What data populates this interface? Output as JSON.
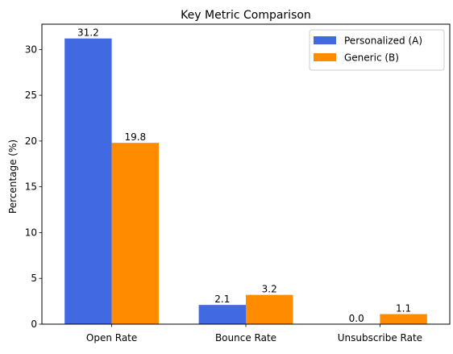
{
  "chart_data": {
    "type": "bar",
    "title": "Key Metric Comparison",
    "xlabel": "",
    "ylabel": "Percentage (%)",
    "categories": [
      "Open Rate",
      "Bounce Rate",
      "Unsubscribe Rate"
    ],
    "ylim": [
      0,
      32.76
    ],
    "yticks": [
      0,
      5,
      10,
      15,
      20,
      25,
      30
    ],
    "grid": false,
    "legend_position": "top-right",
    "series": [
      {
        "name": "Personalized (A)",
        "color": "#4169e1",
        "values": [
          31.2,
          2.1,
          0.0
        ]
      },
      {
        "name": "Generic (B)",
        "color": "#ff8c00",
        "values": [
          19.8,
          3.2,
          1.1
        ]
      }
    ],
    "data_labels": [
      [
        "31.2",
        "2.1",
        "0.0"
      ],
      [
        "19.8",
        "3.2",
        "1.1"
      ]
    ]
  }
}
